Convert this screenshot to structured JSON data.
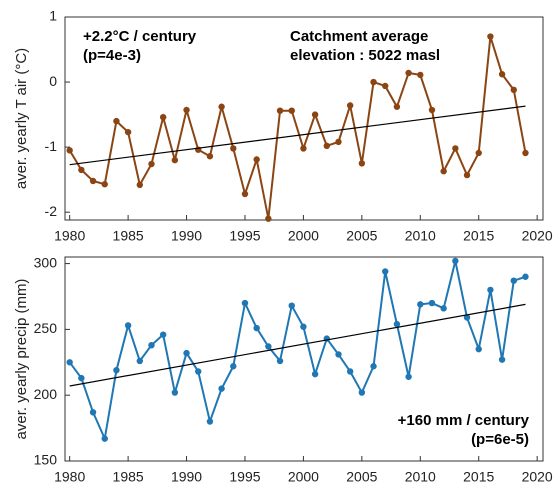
{
  "chart_data": [
    {
      "type": "line",
      "ylabel": "aver. yearly T air (°C)",
      "x": [
        1980,
        1981,
        1982,
        1983,
        1984,
        1985,
        1986,
        1987,
        1988,
        1989,
        1990,
        1991,
        1992,
        1993,
        1994,
        1995,
        1996,
        1997,
        1998,
        1999,
        2000,
        2001,
        2002,
        2003,
        2004,
        2005,
        2006,
        2007,
        2008,
        2009,
        2010,
        2011,
        2012,
        2013,
        2014,
        2015,
        2016,
        2017,
        2018,
        2019
      ],
      "series": [
        {
          "color": "#8b4513",
          "values": [
            -1.05,
            -1.35,
            -1.52,
            -1.57,
            -0.6,
            -0.77,
            -1.58,
            -1.26,
            -0.54,
            -1.2,
            -0.43,
            -1.04,
            -1.14,
            -0.38,
            -1.02,
            -1.72,
            -1.19,
            -2.1,
            -0.44,
            -0.44,
            -1.02,
            -0.5,
            -0.98,
            -0.92,
            -0.36,
            -1.25,
            0.0,
            -0.06,
            -0.38,
            0.14,
            0.11,
            -0.43,
            -1.37,
            -1.02,
            -1.43,
            -1.09,
            0.7,
            0.12,
            -0.12,
            -1.09
          ]
        }
      ],
      "trend": {
        "x": [
          1980,
          2019
        ],
        "values": [
          -1.27,
          -0.37
        ],
        "color": "#000000"
      },
      "xlim": [
        1979.6,
        2020.5
      ],
      "xticks": [
        1980,
        1985,
        1990,
        1995,
        2000,
        2005,
        2010,
        2015,
        2020
      ],
      "ylim": [
        -2.12,
        1
      ],
      "yticks": [
        -2,
        -1,
        0,
        1
      ],
      "annotations": [
        {
          "corner": "top-left",
          "lines": [
            "+2.2°C / century",
            "(p=4e-3)"
          ]
        },
        {
          "corner": "top-right",
          "lines": [
            "Catchment average",
            "elevation : 5022 masl"
          ]
        }
      ]
    },
    {
      "type": "line",
      "ylabel": "aver. yearly precip (mm)",
      "x": [
        1980,
        1981,
        1982,
        1983,
        1984,
        1985,
        1986,
        1987,
        1988,
        1989,
        1990,
        1991,
        1992,
        1993,
        1994,
        1995,
        1996,
        1997,
        1998,
        1999,
        2000,
        2001,
        2002,
        2003,
        2004,
        2005,
        2006,
        2007,
        2008,
        2009,
        2010,
        2011,
        2012,
        2013,
        2014,
        2015,
        2016,
        2017,
        2018,
        2019
      ],
      "series": [
        {
          "color": "#1f77b4",
          "values": [
            225,
            213,
            187,
            167,
            219,
            253,
            226,
            238,
            246,
            202,
            232,
            218,
            180,
            205,
            222,
            270,
            251,
            237,
            226,
            268,
            252,
            216,
            243,
            231,
            218,
            202,
            222,
            294,
            254,
            214,
            269,
            270,
            266,
            302,
            259,
            235,
            280,
            227,
            287,
            290
          ]
        }
      ],
      "trend": {
        "x": [
          1980,
          2019
        ],
        "values": [
          207,
          269
        ],
        "color": "#000000"
      },
      "xlim": [
        1979.6,
        2020.5
      ],
      "xticks": [
        1980,
        1985,
        1990,
        1995,
        2000,
        2005,
        2010,
        2015,
        2020
      ],
      "ylim": [
        150,
        305
      ],
      "yticks": [
        150,
        200,
        250,
        300
      ],
      "annotations": [
        {
          "corner": "bottom-right",
          "lines": [
            "+160 mm / century",
            "(p=6e-5)"
          ]
        }
      ]
    }
  ]
}
